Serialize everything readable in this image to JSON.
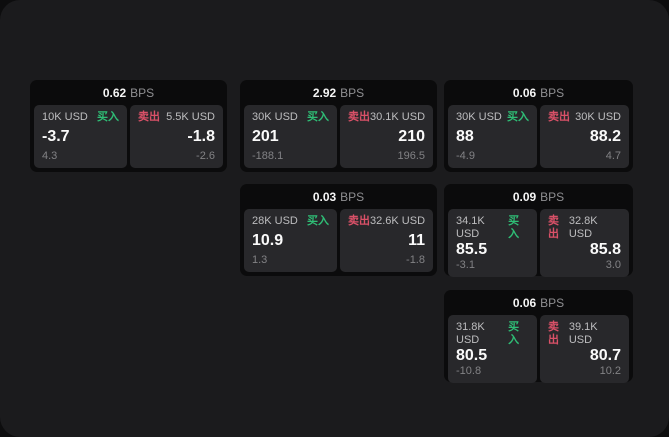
{
  "labels": {
    "bps": "BPS",
    "buy": "买入",
    "sell": "卖出"
  },
  "colors": {
    "window_bg": "#1b1b1d",
    "outer_bg": "#0d0d0e",
    "card_bg": "#0b0b0c",
    "panel_bg": "#28282b",
    "buy_green": "#2fbe76",
    "sell_red": "#da5168"
  },
  "cards": [
    {
      "bps": "0.62",
      "buy": {
        "amount": "10K USD",
        "price": "-3.7",
        "delta": "4.3"
      },
      "sell": {
        "amount": "5.5K USD",
        "price": "-1.8",
        "delta": "-2.6"
      }
    },
    {
      "bps": "2.92",
      "buy": {
        "amount": "30K USD",
        "price": "201",
        "delta": "-188.1"
      },
      "sell": {
        "amount": "30.1K USD",
        "price": "210",
        "delta": "196.5"
      }
    },
    {
      "bps": "0.06",
      "buy": {
        "amount": "30K USD",
        "price": "88",
        "delta": "-4.9"
      },
      "sell": {
        "amount": "30K USD",
        "price": "88.2",
        "delta": "4.7"
      }
    },
    {
      "bps": "0.03",
      "buy": {
        "amount": "28K USD",
        "price": "10.9",
        "delta": "1.3"
      },
      "sell": {
        "amount": "32.6K USD",
        "price": "11",
        "delta": "-1.8"
      }
    },
    {
      "bps": "0.09",
      "buy": {
        "amount": "34.1K USD",
        "price": "85.5",
        "delta": "-3.1"
      },
      "sell": {
        "amount": "32.8K USD",
        "price": "85.8",
        "delta": "3.0"
      }
    },
    {
      "bps": "0.06",
      "buy": {
        "amount": "31.8K USD",
        "price": "80.5",
        "delta": "-10.8"
      },
      "sell": {
        "amount": "39.1K USD",
        "price": "80.7",
        "delta": "10.2"
      }
    }
  ]
}
